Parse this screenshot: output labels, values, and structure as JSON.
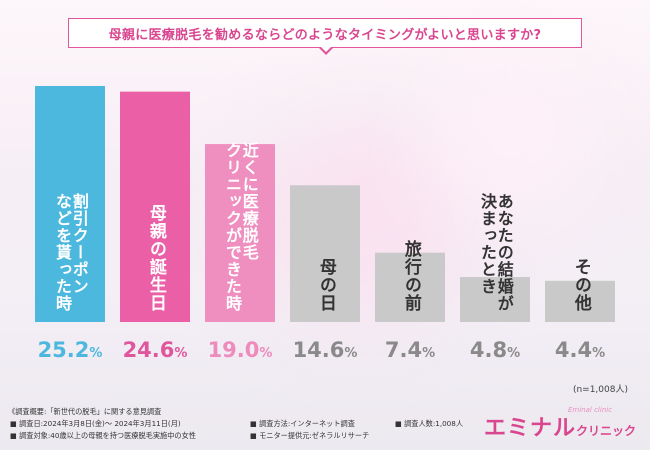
{
  "title": "母親に医療脱毛を勧めるならどのようなタイミングがよいと思いますか?",
  "sample_note": "(n=1,008人)",
  "footer": {
    "overview": "《調査概要:「新世代の脱毛」に関する意見調査",
    "period": "■ 調査日:2024年3月8日(金)〜 2024年3月11日(月)",
    "target": "■ 調査対象:40歳以上の母親を持つ医療脱毛実施中の女性",
    "method": "■ 調査方法:インターネット調査",
    "provider": "■ モニター提供元:ゼネラルリサーチ",
    "count": "■ 調査人数:1,008人"
  },
  "logo": {
    "main": "エミナル",
    "sub": "クリニック",
    "small": "Eminal clinic"
  },
  "chart_data": {
    "type": "bar",
    "title": "母親に医療脱毛を勧めるならどのようなタイミングがよいと思いますか?",
    "unit": "%",
    "categories": [
      "割引クーポンなどを貰った時",
      "母親の誕生日",
      "近くに医療脱毛クリニックができた時",
      "母の日",
      "旅行の前",
      "あなたの結婚が決まったとき",
      "その他"
    ],
    "bar_text": [
      [
        "割引クーポン",
        "などを貰った時"
      ],
      [
        "母親の誕生日"
      ],
      [
        "近くに医療脱毛",
        "クリニックができた時"
      ],
      [
        "母の日"
      ],
      [
        "旅行の前"
      ],
      [
        "あなたの結婚が",
        "決まったとき"
      ],
      [
        "その他"
      ]
    ],
    "values": [
      25.2,
      24.6,
      19.0,
      14.6,
      7.4,
      4.8,
      4.4
    ],
    "value_labels": [
      "25.2%",
      "24.6%",
      "19.0%",
      "14.6%",
      "7.4%",
      "4.8%",
      "4.4%"
    ],
    "colors": [
      "#4cb8de",
      "#ea5fa6",
      "#ef8fc0",
      "#c9c9c9",
      "#c9c9c9",
      "#c9c9c9",
      "#c9c9c9"
    ],
    "label_colors": [
      "#4cb8de",
      "#e0569c",
      "#ee8bbd",
      "#8a8a8a",
      "#8a8a8a",
      "#8a8a8a",
      "#8a8a8a"
    ],
    "ylim": [
      0,
      25.2
    ]
  }
}
